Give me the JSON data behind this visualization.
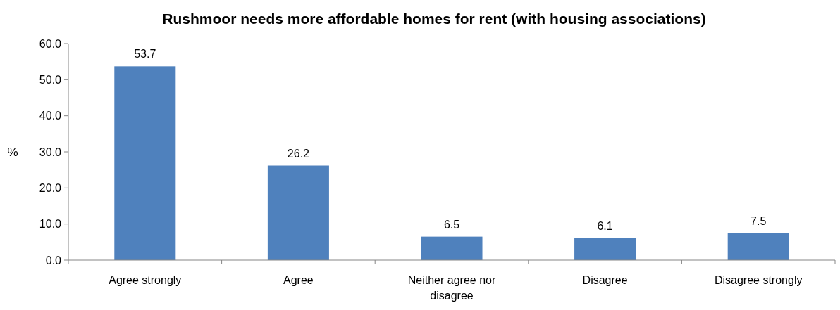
{
  "chart_data": {
    "type": "bar",
    "title": "Rushmoor needs more affordable homes for rent (with housing associations)",
    "ylabel": "%",
    "categories": [
      "Agree strongly",
      "Agree",
      "Neither agree nor disagree",
      "Disagree",
      "Disagree strongly"
    ],
    "values": [
      53.7,
      26.2,
      6.5,
      6.1,
      7.5
    ],
    "color": "#4f81bd",
    "ylim": [
      0,
      60
    ],
    "yticks": [
      {
        "value": 0,
        "label": "0.0"
      },
      {
        "value": 10,
        "label": "10.0"
      },
      {
        "value": 20,
        "label": "20.0"
      },
      {
        "value": 30,
        "label": "30.0"
      },
      {
        "value": 40,
        "label": "40.0"
      },
      {
        "value": 50,
        "label": "50.0"
      },
      {
        "value": 60,
        "label": "60.0"
      }
    ],
    "data_labels": true,
    "grid": false
  }
}
